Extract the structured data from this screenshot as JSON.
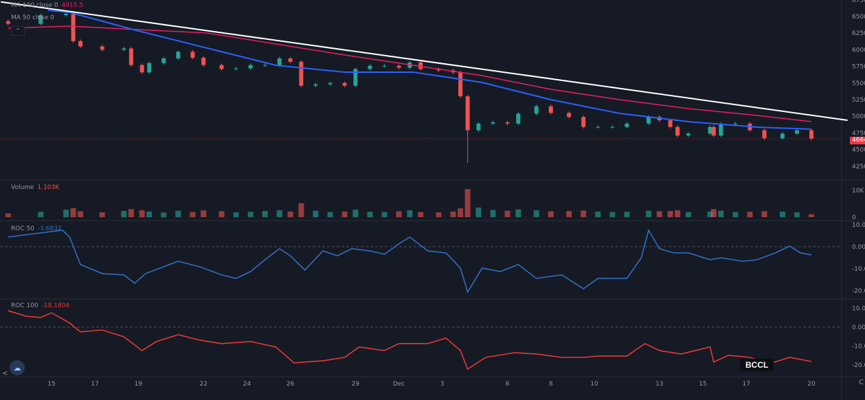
{
  "chart_data": {
    "type": "candlestick",
    "watermark": "BCCL",
    "x_ticks": [
      "15",
      "17",
      "19",
      "22",
      "24",
      "26",
      "29",
      "Dec",
      "3",
      "6",
      "8",
      "10",
      "13",
      "15",
      "17",
      "20"
    ],
    "last_price": "4664",
    "colors": {
      "up": "#26a69a",
      "down": "#ef5350",
      "ma100": "#e91e63",
      "ma50": "#2962ff",
      "roc50": "#2f6fc0",
      "roc100": "#e53935",
      "trendline": "#ffffff",
      "background": "#161a25"
    },
    "price_pane": {
      "y_ticks": [
        "6750",
        "6500",
        "6250",
        "6000",
        "5750",
        "5500",
        "5250",
        "5000",
        "4750",
        "4500",
        "4250"
      ],
      "legend": [
        {
          "label": "MA 100 close 0",
          "value": "4915.5"
        },
        {
          "label": "MA 50 close 0",
          "value": ""
        }
      ],
      "closes": [
        [
          "11-13 00",
          6390
        ],
        [
          "11-14 12",
          6520
        ],
        [
          "11-15 16",
          6540
        ],
        [
          "11-16 00",
          6130
        ],
        [
          "11-16 08",
          6050
        ],
        [
          "11-17 08",
          6000
        ],
        [
          "11-18 08",
          6020
        ],
        [
          "11-18 16",
          5770
        ],
        [
          "11-19 04",
          5660
        ],
        [
          "11-19 12",
          5800
        ],
        [
          "11-20 04",
          5870
        ],
        [
          "11-20 20",
          5970
        ],
        [
          "11-21 12",
          5880
        ],
        [
          "11-22 00",
          5770
        ],
        [
          "11-22 20",
          5710
        ],
        [
          "11-23 12",
          5720
        ],
        [
          "11-24 04",
          5770
        ],
        [
          "11-24 20",
          5770
        ],
        [
          "11-25 12",
          5870
        ],
        [
          "11-26 00",
          5820
        ],
        [
          "11-26 12",
          5460
        ],
        [
          "11-27 04",
          5480
        ],
        [
          "11-27 20",
          5500
        ],
        [
          "11-28 12",
          5460
        ],
        [
          "11-29 00",
          5710
        ],
        [
          "11-29 16",
          5760
        ],
        [
          "11-30 08",
          5760
        ],
        [
          "12-01 00",
          5730
        ],
        [
          "12-01 12",
          5810
        ],
        [
          "12-02 00",
          5710
        ],
        [
          "12-02 20",
          5690
        ],
        [
          "12-03 12",
          5660
        ],
        [
          "12-03 20",
          5300
        ],
        [
          "12-04 04",
          4790
        ],
        [
          "12-04 16",
          4890
        ],
        [
          "12-05 08",
          4910
        ],
        [
          "12-06 00",
          4890
        ],
        [
          "12-06 12",
          5040
        ],
        [
          "12-07 08",
          5150
        ],
        [
          "12-08 00",
          5050
        ],
        [
          "12-08 20",
          4990
        ],
        [
          "12-09 12",
          4840
        ],
        [
          "12-10 04",
          4840
        ],
        [
          "12-10 20",
          4840
        ],
        [
          "12-11 12",
          4890
        ],
        [
          "12-12 12",
          4990
        ],
        [
          "12-13 00",
          4940
        ],
        [
          "12-13 12",
          4840
        ],
        [
          "12-13 20",
          4710
        ],
        [
          "12-14 08",
          4740
        ],
        [
          "12-15 08",
          4840
        ],
        [
          "12-15 12",
          4710
        ],
        [
          "12-15 20",
          4890
        ],
        [
          "12-16 12",
          4890
        ],
        [
          "12-17 04",
          4790
        ],
        [
          "12-17 20",
          4670
        ],
        [
          "12-18 16",
          4740
        ],
        [
          "12-19 08",
          4790
        ],
        [
          "12-20 00",
          4664
        ]
      ],
      "min_low": [
        "12-04 04",
        4300
      ],
      "ma100": [
        [
          "11-13 00",
          6324
        ],
        [
          "11-15 20",
          6355
        ],
        [
          "11-22 04",
          6252
        ],
        [
          "11-28 12",
          5921
        ],
        [
          "12-01 16",
          5766
        ],
        [
          "12-04 20",
          5612
        ],
        [
          "12-08 00",
          5405
        ],
        [
          "12-11 04",
          5250
        ],
        [
          "12-14 08",
          5116
        ],
        [
          "12-17 12",
          5013
        ],
        [
          "12-20 00",
          4920
        ]
      ],
      "ma50": [
        [
          "11-14 20",
          6593
        ],
        [
          "11-15 20",
          6562
        ],
        [
          "11-19 00",
          6283
        ],
        [
          "11-22 04",
          6025
        ],
        [
          "11-25 08",
          5767
        ],
        [
          "11-28 12",
          5663
        ],
        [
          "12-01 16",
          5663
        ],
        [
          "12-04 20",
          5508
        ],
        [
          "12-08 00",
          5250
        ],
        [
          "12-11 04",
          5043
        ],
        [
          "12-14 08",
          4919
        ],
        [
          "12-17 12",
          4837
        ],
        [
          "12-20 00",
          4806
        ]
      ],
      "trendline": [
        [
          "11-12 16",
          6720
        ],
        [
          "12-21 16",
          4940
        ]
      ]
    },
    "volume_pane": {
      "label": "Volume",
      "value": "1.103K",
      "y_ticks": [
        "10K",
        "0"
      ],
      "values": [
        1400,
        2000,
        2800,
        3400,
        2200,
        1800,
        2300,
        3000,
        2600,
        2100,
        1700,
        2400,
        1900,
        2500,
        2200,
        1800,
        2000,
        2300,
        2600,
        2100,
        5200,
        2400,
        1900,
        2100,
        2800,
        2000,
        1900,
        2200,
        2600,
        1900,
        1800,
        2100,
        3300,
        10500,
        3600,
        2700,
        2400,
        2900,
        2600,
        2200,
        2300,
        2500,
        2100,
        1900,
        2000,
        2400,
        2200,
        2300,
        2600,
        1900,
        2100,
        3000,
        2400,
        1900,
        2000,
        2200,
        2100,
        1800,
        1103
      ]
    },
    "roc50_pane": {
      "label": "ROC 50",
      "value": "-3.6832",
      "y_ticks": [
        "10.00",
        "0.000",
        "-10.00",
        "-20.00"
      ],
      "points": [
        [
          "11-13 00",
          4.4
        ],
        [
          "11-14 04",
          5.9
        ],
        [
          "11-15 12",
          7.5
        ],
        [
          "11-15 20",
          4.4
        ],
        [
          "11-16 08",
          -8.1
        ],
        [
          "11-17 08",
          -12.2
        ],
        [
          "11-18 08",
          -12.8
        ],
        [
          "11-18 20",
          -16.6
        ],
        [
          "11-19 08",
          -12.2
        ],
        [
          "11-20 20",
          -6.6
        ],
        [
          "11-21 20",
          -9.1
        ],
        [
          "11-22 20",
          -12.8
        ],
        [
          "11-23 12",
          -14.4
        ],
        [
          "11-24 04",
          -11.3
        ],
        [
          "11-24 20",
          -5.9
        ],
        [
          "11-25 12",
          -0.9
        ],
        [
          "11-26 00",
          -4.1
        ],
        [
          "11-26 16",
          -10.6
        ],
        [
          "11-27 12",
          -1.9
        ],
        [
          "11-28 04",
          -4.1
        ],
        [
          "11-28 20",
          -0.9
        ],
        [
          "11-29 16",
          -1.9
        ],
        [
          "11-30 08",
          -3.4
        ],
        [
          "12-01 00",
          1.3
        ],
        [
          "12-01 12",
          4.4
        ],
        [
          "12-02 08",
          -1.9
        ],
        [
          "12-03 04",
          -2.8
        ],
        [
          "12-03 20",
          -9.7
        ],
        [
          "12-04 04",
          -20.6
        ],
        [
          "12-04 20",
          -9.7
        ],
        [
          "12-05 16",
          -11.3
        ],
        [
          "12-06 12",
          -8.1
        ],
        [
          "12-07 08",
          -14.4
        ],
        [
          "12-08 12",
          -12.8
        ],
        [
          "12-09 12",
          -19.1
        ],
        [
          "12-10 04",
          -14.4
        ],
        [
          "12-11 12",
          -14.4
        ],
        [
          "12-12 04",
          -5.0
        ],
        [
          "12-12 12",
          7.5
        ],
        [
          "12-13 00",
          -0.9
        ],
        [
          "12-13 16",
          -2.8
        ],
        [
          "12-14 08",
          -2.8
        ],
        [
          "12-15 08",
          -5.9
        ],
        [
          "12-15 20",
          -5.0
        ],
        [
          "12-16 20",
          -6.6
        ],
        [
          "12-17 12",
          -5.9
        ],
        [
          "12-18 08",
          -2.8
        ],
        [
          "12-19 00",
          0.3
        ],
        [
          "12-19 12",
          -2.8
        ],
        [
          "12-20 00",
          -3.68
        ]
      ]
    },
    "roc100_pane": {
      "label": "ROC 100",
      "value": "-18.1804",
      "y_ticks": [
        "10.00",
        "0.000",
        "-10.00",
        "-20.00"
      ],
      "points": [
        [
          "11-13 00",
          8.7
        ],
        [
          "11-13 20",
          5.8
        ],
        [
          "11-14 12",
          5.1
        ],
        [
          "11-15 00",
          7.6
        ],
        [
          "11-15 20",
          2.2
        ],
        [
          "11-16 08",
          -2.5
        ],
        [
          "11-17 08",
          -1.5
        ],
        [
          "11-18 08",
          -5.1
        ],
        [
          "11-19 04",
          -12.4
        ],
        [
          "11-19 20",
          -7.6
        ],
        [
          "11-20 20",
          -4.0
        ],
        [
          "11-21 20",
          -6.9
        ],
        [
          "11-22 20",
          -8.7
        ],
        [
          "11-24 04",
          -7.6
        ],
        [
          "11-25 08",
          -10.5
        ],
        [
          "11-26 04",
          -18.9
        ],
        [
          "11-27 12",
          -17.8
        ],
        [
          "11-28 12",
          -16.0
        ],
        [
          "11-29 04",
          -10.5
        ],
        [
          "11-30 08",
          -12.4
        ],
        [
          "12-01 00",
          -8.7
        ],
        [
          "12-02 08",
          -8.7
        ],
        [
          "12-03 04",
          -5.8
        ],
        [
          "12-03 20",
          -12.4
        ],
        [
          "12-04 04",
          -22.2
        ],
        [
          "12-05 00",
          -16.0
        ],
        [
          "12-06 08",
          -13.5
        ],
        [
          "12-07 08",
          -14.2
        ],
        [
          "12-08 12",
          -16.0
        ],
        [
          "12-09 12",
          -16.0
        ],
        [
          "12-10 04",
          -15.3
        ],
        [
          "12-11 12",
          -15.3
        ],
        [
          "12-12 08",
          -8.7
        ],
        [
          "12-13 00",
          -12.4
        ],
        [
          "12-14 00",
          -14.2
        ],
        [
          "12-15 08",
          -10.5
        ],
        [
          "12-15 12",
          -18.5
        ],
        [
          "12-16 04",
          -14.9
        ],
        [
          "12-17 04",
          -16.0
        ],
        [
          "12-18 00",
          -19.6
        ],
        [
          "12-19 00",
          -16.0
        ],
        [
          "12-20 00",
          -18.18
        ]
      ]
    }
  },
  "ui": {
    "logo_icon": "cloud-icon",
    "scroll_left": "<",
    "reset_icon": "C"
  }
}
